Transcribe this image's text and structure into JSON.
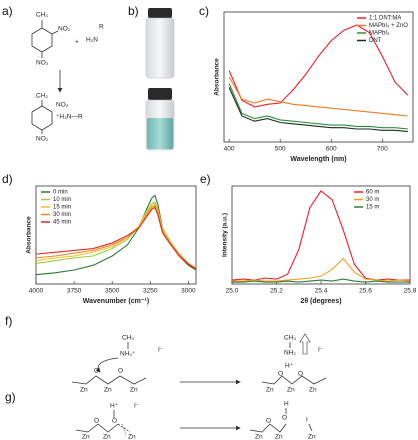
{
  "panel_labels": [
    "a)",
    "b)",
    "c)",
    "d)",
    "e)",
    "f)",
    "g)"
  ],
  "scheme_a": [
    "CH₃",
    "NO₂",
    "NO₂",
    "+",
    "R",
    "H₂N",
    "CH₂",
    "NO₂",
    "⁺H₃N—R",
    "NO₂"
  ],
  "scheme_f": [
    "CH₃",
    "NH₃⁺",
    "I⁻",
    "O",
    "O",
    "Zn",
    "Zn",
    "Zn",
    "CH₃",
    "NH₂",
    "I⁻",
    "H⁺",
    "O",
    "O",
    "Zn",
    "Zn",
    "Zn"
  ],
  "scheme_g": [
    "H⁺",
    "I⁻",
    "O",
    "O",
    "Zn",
    "Zn",
    "Zn",
    "H",
    "O",
    "O",
    "I",
    "Zn",
    "Zn",
    "Zn"
  ],
  "chart_data": [
    {
      "type": "line",
      "ylabel": "Absorbance",
      "xlabel": "Wavelength (nm)",
      "legend": "upper-right",
      "x": [
        400,
        425,
        450,
        475,
        500,
        525,
        550,
        575,
        600,
        625,
        650,
        675,
        700,
        725,
        750
      ],
      "xlim": [
        390,
        760
      ],
      "ylim": [
        0,
        1
      ],
      "xticks": [
        400,
        500,
        600,
        700
      ],
      "series": [
        {
          "name": "1:1 DNT:MA",
          "color": "#e8202a",
          "values": [
            0.55,
            0.32,
            0.27,
            0.29,
            0.3,
            0.4,
            0.52,
            0.66,
            0.78,
            0.86,
            0.9,
            0.84,
            0.66,
            0.46,
            0.36
          ]
        },
        {
          "name": "MAPbI₃ + ZnO",
          "color": "#f07a22",
          "values": [
            0.5,
            0.33,
            0.3,
            0.33,
            0.31,
            0.29,
            0.28,
            0.27,
            0.26,
            0.25,
            0.24,
            0.23,
            0.22,
            0.21,
            0.2
          ]
        },
        {
          "name": "MAPbI₃",
          "color": "#2e8b3a",
          "values": [
            0.45,
            0.22,
            0.18,
            0.2,
            0.17,
            0.16,
            0.15,
            0.14,
            0.13,
            0.13,
            0.12,
            0.12,
            0.11,
            0.11,
            0.1
          ]
        },
        {
          "name": "DNT",
          "color": "#1d2a22",
          "values": [
            0.42,
            0.2,
            0.16,
            0.18,
            0.15,
            0.14,
            0.13,
            0.12,
            0.11,
            0.11,
            0.1,
            0.1,
            0.09,
            0.09,
            0.08
          ]
        }
      ]
    },
    {
      "type": "line",
      "ylabel": "Absorbance",
      "xlabel": "Wavenumber (cm⁻¹)",
      "legend": "upper-left",
      "x": [
        4000,
        3875,
        3750,
        3625,
        3500,
        3400,
        3325,
        3275,
        3240,
        3220,
        3200,
        3170,
        3120,
        3060,
        3000,
        2950
      ],
      "xlim": [
        4000,
        2950
      ],
      "ylim": [
        0,
        1.05
      ],
      "xticks": [
        4000,
        3750,
        3500,
        3250,
        3000
      ],
      "series": [
        {
          "name": "0 min",
          "color": "#2a7a2e",
          "values": [
            0.1,
            0.12,
            0.15,
            0.2,
            0.3,
            0.42,
            0.6,
            0.8,
            0.92,
            0.95,
            0.85,
            0.6,
            0.45,
            0.3,
            0.2,
            0.15
          ]
        },
        {
          "name": "10 min",
          "color": "#9ccc3c",
          "values": [
            0.22,
            0.25,
            0.28,
            0.3,
            0.38,
            0.48,
            0.62,
            0.78,
            0.86,
            0.88,
            0.8,
            0.6,
            0.46,
            0.32,
            0.22,
            0.17
          ]
        },
        {
          "name": "15 min",
          "color": "#f2c12e",
          "values": [
            0.25,
            0.28,
            0.3,
            0.34,
            0.4,
            0.5,
            0.62,
            0.76,
            0.84,
            0.86,
            0.78,
            0.58,
            0.45,
            0.32,
            0.22,
            0.17
          ]
        },
        {
          "name": "30 min",
          "color": "#f08a24",
          "values": [
            0.28,
            0.3,
            0.33,
            0.36,
            0.42,
            0.5,
            0.6,
            0.74,
            0.82,
            0.84,
            0.76,
            0.56,
            0.44,
            0.32,
            0.22,
            0.17
          ]
        },
        {
          "name": "45 min",
          "color": "#e02a22",
          "values": [
            0.32,
            0.34,
            0.36,
            0.38,
            0.44,
            0.52,
            0.6,
            0.72,
            0.8,
            0.82,
            0.74,
            0.55,
            0.43,
            0.3,
            0.21,
            0.16
          ]
        }
      ]
    },
    {
      "type": "line",
      "ylabel": "Intensity (a.u.)",
      "xlabel": "2θ (degrees)",
      "legend": "upper-right",
      "x": [
        25,
        25.05,
        25.1,
        25.15,
        25.2,
        25.25,
        25.3,
        25.35,
        25.4,
        25.45,
        25.5,
        25.55,
        25.6,
        25.65,
        25.7,
        25.75,
        25.8
      ],
      "xlim": [
        25,
        25.8
      ],
      "ylim": [
        0,
        1
      ],
      "xticks": [
        {
          "value": 25,
          "label": "25.0"
        },
        25.2,
        25.4,
        25.6,
        25.8
      ],
      "series": [
        {
          "name": "60 m",
          "color": "#e8202a",
          "values": [
            0.04,
            0.05,
            0.04,
            0.06,
            0.05,
            0.1,
            0.35,
            0.78,
            0.95,
            0.86,
            0.55,
            0.2,
            0.06,
            0.04,
            0.05,
            0.04,
            0.04
          ]
        },
        {
          "name": "30 m",
          "color": "#f0a020",
          "values": [
            0.03,
            0.03,
            0.04,
            0.03,
            0.03,
            0.04,
            0.05,
            0.06,
            0.08,
            0.15,
            0.26,
            0.12,
            0.05,
            0.04,
            0.03,
            0.04,
            0.03
          ]
        },
        {
          "name": "15 m",
          "color": "#2e7d3a",
          "values": [
            0.02,
            0.02,
            0.03,
            0.02,
            0.02,
            0.03,
            0.02,
            0.03,
            0.04,
            0.03,
            0.05,
            0.03,
            0.02,
            0.03,
            0.02,
            0.02,
            0.02
          ]
        }
      ]
    }
  ]
}
